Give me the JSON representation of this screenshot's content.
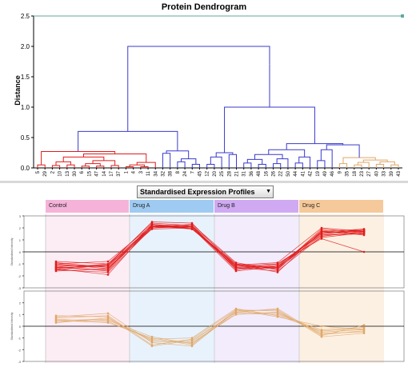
{
  "title": "Protein Dendrogram",
  "dendrogram": {
    "ylabel": "Distance",
    "yticks": [
      "0.0",
      "0.5",
      "1.0",
      "1.5",
      "2.0",
      "2.5"
    ],
    "leaf_labels": [
      "5",
      "29",
      "2",
      "10",
      "13",
      "30",
      "6",
      "15",
      "47",
      "14",
      "17",
      "37",
      "1",
      "4",
      "3",
      "11",
      "34",
      "32",
      "38",
      "8",
      "24",
      "7",
      "45",
      "12",
      "20",
      "25",
      "28",
      "21",
      "31",
      "36",
      "48",
      "16",
      "26",
      "22",
      "50",
      "44",
      "41",
      "42",
      "19",
      "49",
      "46",
      "9",
      "35",
      "18",
      "23",
      "27",
      "40",
      "33",
      "39",
      "43"
    ],
    "colors": {
      "cluster1": "#e21b1b",
      "cluster2": "#3a3acc",
      "cluster3": "#e0a868"
    }
  },
  "profiles": {
    "selector": "Standardised Expression Profiles",
    "groups": [
      {
        "label": "Control",
        "color": "#f5b3d9",
        "bg": "#fcedf5"
      },
      {
        "label": "Drug A",
        "color": "#9fcbf2",
        "bg": "#e8f2fc"
      },
      {
        "label": "Drug B",
        "color": "#cfaaf2",
        "bg": "#f2ecfc"
      },
      {
        "label": "Drug C",
        "color": "#f6c99a",
        "bg": "#fcf0e3"
      }
    ],
    "panel_ylabel": "Standardised Intensity",
    "panel1_ticks": [
      "3",
      "2",
      "1",
      "0",
      "-1",
      "-2",
      "-3"
    ],
    "panel2_ticks": [
      "2",
      "1",
      "0",
      "-1",
      "-2",
      "-3"
    ]
  },
  "chart_data": {
    "type": "line",
    "panels": [
      {
        "name": "cluster1",
        "color": "#e21b1b",
        "ylim": [
          -3,
          3
        ],
        "x": [
          1,
          2,
          3,
          4,
          5,
          6,
          7,
          8
        ],
        "series": [
          {
            "values": [
              -1.3,
              -1.2,
              2.1,
              2.0,
              -1.1,
              -1.3,
              1.6,
              1.7
            ]
          },
          {
            "values": [
              -1.0,
              -1.4,
              2.3,
              2.1,
              -1.2,
              -1.0,
              1.4,
              1.8
            ]
          },
          {
            "values": [
              -1.5,
              -1.1,
              2.0,
              2.2,
              -1.4,
              -1.2,
              1.7,
              1.5
            ]
          },
          {
            "values": [
              -1.2,
              -1.6,
              2.2,
              1.9,
              -1.0,
              -1.4,
              1.9,
              1.6
            ]
          },
          {
            "values": [
              -0.9,
              -1.3,
              1.9,
              2.0,
              -1.3,
              -1.6,
              1.3,
              1.7
            ]
          },
          {
            "values": [
              -1.4,
              -1.0,
              2.4,
              2.2,
              -1.5,
              -1.1,
              1.5,
              1.9
            ]
          },
          {
            "values": [
              -1.1,
              -1.2,
              2.1,
              2.3,
              -0.9,
              -1.5,
              1.8,
              1.4
            ]
          },
          {
            "values": [
              -1.6,
              -1.4,
              2.0,
              2.1,
              -1.2,
              -1.3,
              1.6,
              1.8
            ]
          },
          {
            "values": [
              -1.0,
              -0.8,
              2.2,
              2.0,
              -1.6,
              -1.2,
              1.2,
              1.6
            ]
          },
          {
            "values": [
              -1.3,
              -1.5,
              2.3,
              1.9,
              -1.1,
              -0.9,
              2.0,
              1.7
            ]
          },
          {
            "values": [
              -1.2,
              -1.1,
              2.5,
              2.4,
              -1.3,
              -1.4,
              1.4,
              1.5
            ]
          },
          {
            "values": [
              -1.5,
              -1.7,
              2.0,
              2.2,
              -1.0,
              -1.7,
              1.7,
              1.9
            ]
          },
          {
            "values": [
              -0.8,
              -1.0,
              2.1,
              2.0,
              -1.4,
              -1.0,
              1.1,
              0.0
            ]
          },
          {
            "values": [
              -1.4,
              -1.9,
              2.2,
              2.1,
              -1.2,
              -1.3,
              1.6,
              1.8
            ]
          }
        ]
      },
      {
        "name": "cluster3",
        "color": "#e0a868",
        "ylim": [
          -3,
          3
        ],
        "x": [
          1,
          2,
          3,
          4,
          5,
          6,
          7,
          8
        ],
        "series": [
          {
            "values": [
              0.5,
              0.6,
              -1.2,
              -1.3,
              1.2,
              1.1,
              -0.5,
              -0.3
            ]
          },
          {
            "values": [
              0.7,
              0.9,
              -1.6,
              -1.1,
              1.4,
              1.3,
              -0.7,
              -0.4
            ]
          },
          {
            "values": [
              0.4,
              0.5,
              -0.9,
              -1.5,
              1.1,
              1.0,
              -0.3,
              -0.1
            ]
          },
          {
            "values": [
              0.8,
              1.1,
              -1.4,
              -1.7,
              1.3,
              1.4,
              -0.9,
              -0.6
            ]
          },
          {
            "values": [
              0.6,
              0.4,
              -1.1,
              -1.0,
              1.5,
              0.9,
              -0.4,
              -0.2
            ]
          },
          {
            "values": [
              0.3,
              0.7,
              -1.3,
              -1.4,
              1.0,
              1.2,
              -0.6,
              -0.5
            ]
          },
          {
            "values": [
              0.9,
              0.8,
              -1.7,
              -1.2,
              1.2,
              1.5,
              -0.8,
              0.1
            ]
          },
          {
            "values": [
              0.5,
              0.3,
              -1.0,
              -1.6,
              1.4,
              0.8,
              0.0,
              -0.3
            ]
          }
        ]
      }
    ]
  }
}
